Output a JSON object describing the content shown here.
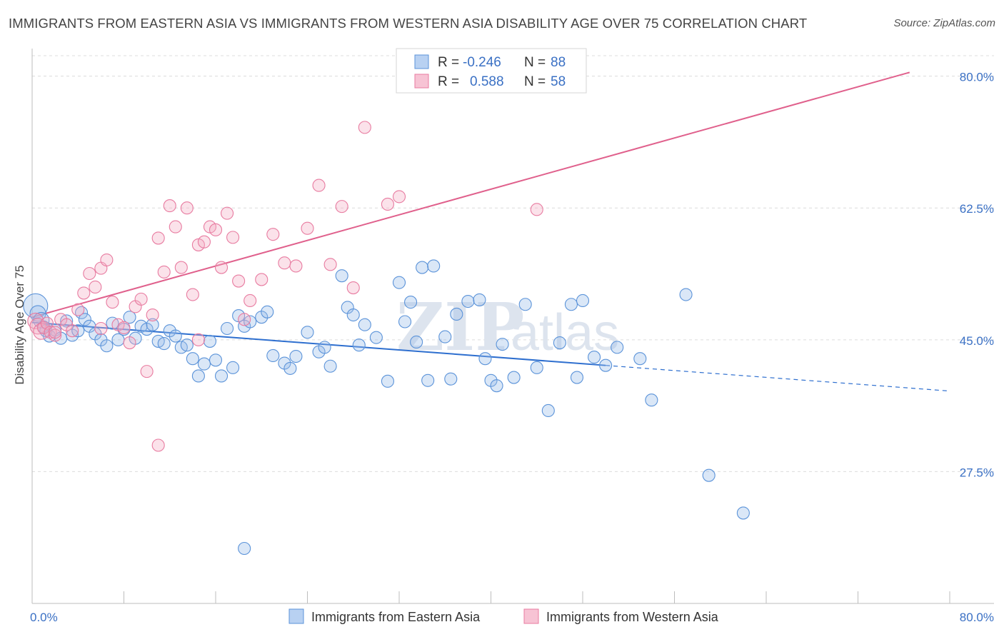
{
  "title": "IMMIGRANTS FROM EASTERN ASIA VS IMMIGRANTS FROM WESTERN ASIA DISABILITY AGE OVER 75 CORRELATION CHART",
  "source": "Source: ZipAtlas.com",
  "watermark": {
    "zip": "ZIP",
    "atlas": "atlas"
  },
  "colors": {
    "blue": "#5b93d9",
    "blue_line": "#2e6fcf",
    "pink": "#e87ba0",
    "pink_line": "#e0608c",
    "tick": "#3a70c4"
  },
  "legend": {
    "rows": [
      {
        "r_label": "R = ",
        "r_value": "-0.246",
        "n_label": "N = ",
        "n_value": "88"
      },
      {
        "r_label": "R = ",
        "r_value": "0.588",
        "n_label": "N = ",
        "n_value": "58"
      }
    ]
  },
  "chart_data": {
    "type": "scatter",
    "ylabel": "Disability Age Over 75",
    "xlim": [
      0,
      80
    ],
    "ylim": [
      10,
      83
    ],
    "x_tick_labels": [
      "0.0%",
      "80.0%"
    ],
    "y_ticks": [
      {
        "value": 27.5,
        "label": "27.5%"
      },
      {
        "value": 45.0,
        "label": "45.0%"
      },
      {
        "value": 62.5,
        "label": "62.5%"
      },
      {
        "value": 80.0,
        "label": "80.0%"
      }
    ],
    "legend_position": "top-center",
    "series": [
      {
        "name": "Immigrants from Eastern Asia",
        "color": "#5b93d9",
        "trend": {
          "x0": 0,
          "y0": 47.3,
          "x1": 50,
          "y1": 41.6,
          "dash_x1": 80,
          "dash_y1": 38.2
        },
        "points": [
          [
            0.3,
            49.5
          ],
          [
            0.5,
            48.5
          ],
          [
            0.8,
            47.6
          ],
          [
            1,
            46.7
          ],
          [
            1.2,
            46.2
          ],
          [
            1.5,
            45.5
          ],
          [
            2,
            46.3
          ],
          [
            2.5,
            45.2
          ],
          [
            3,
            47.5
          ],
          [
            3.5,
            45.6
          ],
          [
            4,
            46.2
          ],
          [
            4.3,
            48.6
          ],
          [
            4.6,
            47.7
          ],
          [
            5,
            46.8
          ],
          [
            5.5,
            45.8
          ],
          [
            6,
            45.0
          ],
          [
            6.5,
            44.2
          ],
          [
            7,
            47.2
          ],
          [
            7.5,
            45.0
          ],
          [
            8,
            46.4
          ],
          [
            8.5,
            48.0
          ],
          [
            9,
            45.2
          ],
          [
            9.5,
            46.8
          ],
          [
            10,
            46.4
          ],
          [
            10.5,
            47.0
          ],
          [
            11,
            44.8
          ],
          [
            11.5,
            44.5
          ],
          [
            12,
            46.2
          ],
          [
            12.5,
            45.5
          ],
          [
            13,
            44.0
          ],
          [
            13.5,
            44.3
          ],
          [
            14,
            42.5
          ],
          [
            14.5,
            40.2
          ],
          [
            15,
            41.8
          ],
          [
            15.5,
            44.8
          ],
          [
            16,
            42.3
          ],
          [
            16.5,
            40.2
          ],
          [
            17,
            46.5
          ],
          [
            17.5,
            41.3
          ],
          [
            18,
            48.2
          ],
          [
            18.5,
            46.8
          ],
          [
            19,
            47.4
          ],
          [
            20,
            48.0
          ],
          [
            20.5,
            48.7
          ],
          [
            21,
            42.9
          ],
          [
            22,
            41.9
          ],
          [
            22.5,
            41.2
          ],
          [
            23,
            42.8
          ],
          [
            24,
            46.0
          ],
          [
            25,
            43.4
          ],
          [
            25.5,
            44.0
          ],
          [
            26,
            41.5
          ],
          [
            27,
            53.5
          ],
          [
            27.5,
            49.3
          ],
          [
            28,
            48.3
          ],
          [
            28.5,
            44.3
          ],
          [
            29,
            47.0
          ],
          [
            30,
            45.3
          ],
          [
            31,
            39.5
          ],
          [
            32,
            52.6
          ],
          [
            32.5,
            47.4
          ],
          [
            33,
            50.0
          ],
          [
            33.5,
            44.7
          ],
          [
            34,
            54.6
          ],
          [
            34.5,
            39.6
          ],
          [
            35,
            54.8
          ],
          [
            36,
            45.4
          ],
          [
            36.5,
            39.8
          ],
          [
            37,
            48.4
          ],
          [
            38,
            50.1
          ],
          [
            39,
            50.3
          ],
          [
            39.5,
            42.5
          ],
          [
            40,
            39.6
          ],
          [
            40.5,
            38.9
          ],
          [
            41,
            44.4
          ],
          [
            42,
            40.0
          ],
          [
            43,
            49.7
          ],
          [
            44,
            41.3
          ],
          [
            45,
            35.6
          ],
          [
            46,
            44.6
          ],
          [
            47,
            49.7
          ],
          [
            47.5,
            40.0
          ],
          [
            48,
            50.2
          ],
          [
            49,
            42.7
          ],
          [
            51,
            44.0
          ],
          [
            54,
            37.0
          ],
          [
            57,
            51.0
          ],
          [
            59,
            27.0
          ],
          [
            62,
            22.0
          ],
          [
            18.5,
            17.3
          ],
          [
            50,
            41.6
          ],
          [
            53,
            42.5
          ]
        ]
      },
      {
        "name": "Immigrants from Western Asia",
        "color": "#e87ba0",
        "trend": {
          "x0": 0,
          "y0": 48.0,
          "x1": 76.5,
          "y1": 80.5
        },
        "points": [
          [
            0.3,
            47.5
          ],
          [
            0.5,
            46.8
          ],
          [
            0.8,
            46.1
          ],
          [
            1,
            46.6
          ],
          [
            1.3,
            47.2
          ],
          [
            1.6,
            46.0
          ],
          [
            2,
            45.6
          ],
          [
            2.5,
            47.7
          ],
          [
            3,
            47.0
          ],
          [
            3.5,
            46.2
          ],
          [
            4,
            49.0
          ],
          [
            4.5,
            51.2
          ],
          [
            5,
            53.8
          ],
          [
            5.5,
            52.0
          ],
          [
            6,
            54.5
          ],
          [
            6.5,
            55.6
          ],
          [
            7,
            50.0
          ],
          [
            7.5,
            47.0
          ],
          [
            8,
            46.6
          ],
          [
            8.5,
            44.6
          ],
          [
            9,
            49.4
          ],
          [
            9.5,
            50.4
          ],
          [
            10,
            40.8
          ],
          [
            10.5,
            48.3
          ],
          [
            11,
            58.5
          ],
          [
            11.5,
            54.0
          ],
          [
            12,
            62.8
          ],
          [
            12.5,
            60.0
          ],
          [
            13,
            54.6
          ],
          [
            13.5,
            62.5
          ],
          [
            14,
            51.0
          ],
          [
            14.5,
            57.6
          ],
          [
            15,
            58.0
          ],
          [
            15.5,
            60.0
          ],
          [
            16,
            59.6
          ],
          [
            16.5,
            54.6
          ],
          [
            17,
            61.8
          ],
          [
            17.5,
            58.6
          ],
          [
            18,
            52.8
          ],
          [
            18.5,
            47.7
          ],
          [
            19,
            50.2
          ],
          [
            20,
            53.0
          ],
          [
            21,
            59.0
          ],
          [
            22,
            55.2
          ],
          [
            23,
            54.8
          ],
          [
            24,
            59.8
          ],
          [
            25,
            65.5
          ],
          [
            26,
            55.0
          ],
          [
            27,
            62.7
          ],
          [
            28,
            51.9
          ],
          [
            29,
            73.2
          ],
          [
            31,
            63.0
          ],
          [
            32,
            64.0
          ],
          [
            11,
            31.0
          ],
          [
            14.5,
            45.0
          ],
          [
            44,
            62.3
          ],
          [
            6,
            46.5
          ],
          [
            2,
            46.0
          ]
        ]
      }
    ]
  }
}
